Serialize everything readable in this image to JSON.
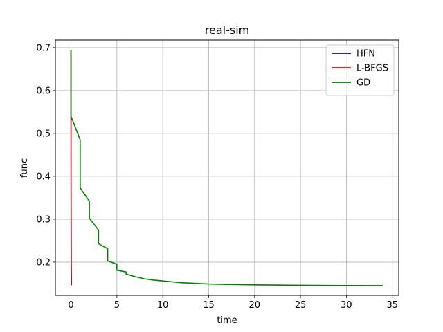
{
  "chart_data": {
    "type": "line",
    "title": "real-sim",
    "xlabel": "time",
    "ylabel": "func",
    "xlim": [
      -1.7,
      35.7
    ],
    "ylim": [
      0.1225,
      0.7175
    ],
    "xticks": [
      0,
      5,
      10,
      15,
      20,
      25,
      30,
      35
    ],
    "yticks": [
      0.2,
      0.3,
      0.4,
      0.5,
      0.6,
      0.7
    ],
    "ytick_labels": [
      "0.2",
      "0.3",
      "0.4",
      "0.5",
      "0.6",
      "0.7"
    ],
    "grid": true,
    "legend_position": "upper right",
    "series": [
      {
        "name": "HFN",
        "color": "#0000ff",
        "x": [
          0,
          0.01,
          0.02,
          0.03,
          0.05
        ],
        "y": [
          0.693,
          0.45,
          0.3,
          0.2,
          0.146
        ]
      },
      {
        "name": "L-BFGS",
        "color": "#ff0000",
        "x": [
          0,
          0.005,
          0.01,
          0.015,
          0.02
        ],
        "y": [
          0.693,
          0.55,
          0.4,
          0.25,
          0.146
        ]
      },
      {
        "name": "GD",
        "color": "#008000",
        "x": [
          0,
          0,
          1,
          1,
          2,
          2,
          3,
          3,
          4,
          4,
          5,
          5,
          6,
          6,
          7,
          8,
          9,
          10,
          11,
          12,
          13,
          14,
          15,
          17,
          20,
          25,
          30,
          34
        ],
        "y": [
          0.693,
          0.54,
          0.485,
          0.373,
          0.342,
          0.302,
          0.275,
          0.243,
          0.231,
          0.203,
          0.195,
          0.181,
          0.177,
          0.172,
          0.166,
          0.161,
          0.158,
          0.156,
          0.154,
          0.152,
          0.151,
          0.15,
          0.149,
          0.148,
          0.147,
          0.146,
          0.1455,
          0.1452
        ]
      }
    ]
  }
}
